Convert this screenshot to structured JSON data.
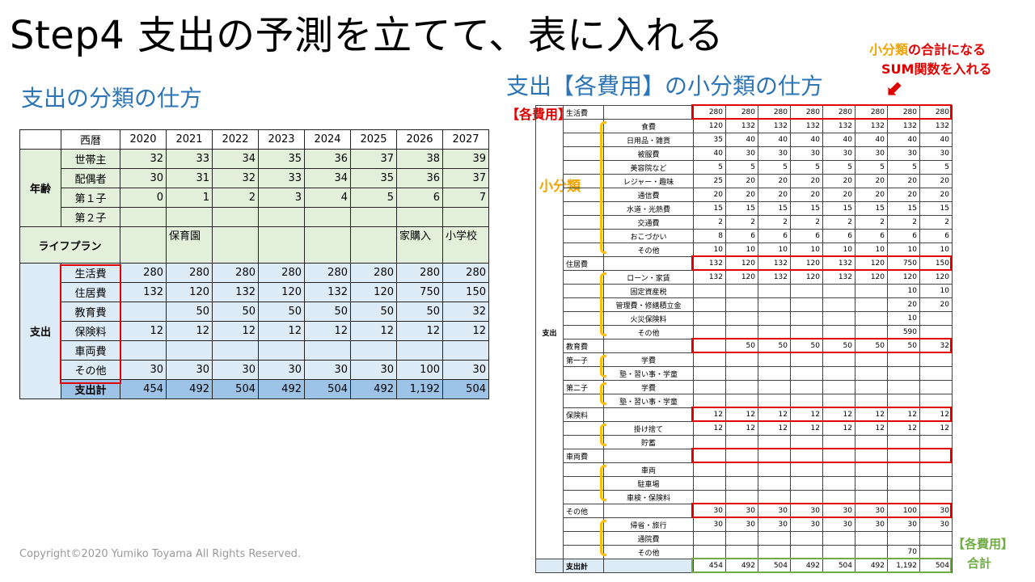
{
  "title": "Step4 支出の予測を立てて、表に入れる",
  "left_subtitle": "支出の分類の仕方",
  "right_subtitle": "支出【各費用】の小分類の仕方",
  "ann_kakuhiyo": "【各費用】",
  "ann_sum_line1_orange": "小分類",
  "ann_sum_line1_red": "の合計になる",
  "ann_sum_line2": "SUM関数を入れる",
  "ann_arrow": "⬋",
  "ann_shobunrui": "小分類",
  "ann_total_line1": "【各費用】",
  "ann_total_line2": "合計",
  "copyright": "Copyright©2020 Yumiko Toyama All Rights Reserved.",
  "colors": {
    "accent_blue": "#2E75B6",
    "highlight_red": "#E00000",
    "bracket_yellow": "#FFC000",
    "total_green": "#70AD47"
  },
  "left_table": {
    "header": [
      "",
      "西暦",
      "2020",
      "2021",
      "2022",
      "2023",
      "2024",
      "2025",
      "2026",
      "2027"
    ],
    "age_group": "年齢",
    "age_rows": [
      [
        "世帯主",
        "32",
        "33",
        "34",
        "35",
        "36",
        "37",
        "38",
        "39"
      ],
      [
        "配偶者",
        "30",
        "31",
        "32",
        "33",
        "34",
        "35",
        "36",
        "37"
      ],
      [
        "第１子",
        "0",
        "1",
        "2",
        "3",
        "4",
        "5",
        "6",
        "7"
      ],
      [
        "第２子",
        "",
        "",
        "",
        "",
        "",
        "",
        "",
        ""
      ]
    ],
    "lifeplan_label": "ライフプラン",
    "lifeplan_values": [
      "",
      "保育園",
      "",
      "",
      "",
      "",
      "家購入",
      "小学校"
    ],
    "expense_group": "支出",
    "expense_rows": [
      [
        "生活費",
        "280",
        "280",
        "280",
        "280",
        "280",
        "280",
        "280",
        "280"
      ],
      [
        "住居費",
        "132",
        "120",
        "132",
        "120",
        "132",
        "120",
        "750",
        "150"
      ],
      [
        "教育費",
        "",
        "50",
        "50",
        "50",
        "50",
        "50",
        "50",
        "32"
      ],
      [
        "保険料",
        "12",
        "12",
        "12",
        "12",
        "12",
        "12",
        "12",
        "12"
      ],
      [
        "車両費",
        "",
        "",
        "",
        "",
        "",
        "",
        "",
        ""
      ],
      [
        "その他",
        "30",
        "30",
        "30",
        "30",
        "30",
        "30",
        "100",
        "30"
      ]
    ],
    "total_row": [
      "支出計",
      "454",
      "492",
      "504",
      "492",
      "504",
      "492",
      "1,192",
      "504"
    ]
  },
  "right_table": {
    "group_label": "支出",
    "rows": [
      {
        "main": "生活費",
        "sub": "",
        "values": [
          "280",
          "280",
          "280",
          "280",
          "280",
          "280",
          "280",
          "280"
        ]
      },
      {
        "main": "",
        "sub": "食費",
        "values": [
          "120",
          "132",
          "132",
          "132",
          "132",
          "132",
          "132",
          "132"
        ]
      },
      {
        "main": "",
        "sub": "日用品・雑貨",
        "values": [
          "35",
          "40",
          "40",
          "40",
          "40",
          "40",
          "40",
          "40"
        ]
      },
      {
        "main": "",
        "sub": "被服費",
        "values": [
          "40",
          "30",
          "30",
          "30",
          "30",
          "30",
          "30",
          "30"
        ]
      },
      {
        "main": "",
        "sub": "美容院など",
        "values": [
          "5",
          "5",
          "5",
          "5",
          "5",
          "5",
          "5",
          "5"
        ]
      },
      {
        "main": "",
        "sub": "レジャー・趣味",
        "values": [
          "25",
          "20",
          "20",
          "20",
          "20",
          "20",
          "20",
          "20"
        ]
      },
      {
        "main": "",
        "sub": "通信費",
        "values": [
          "20",
          "20",
          "20",
          "20",
          "20",
          "20",
          "20",
          "20"
        ]
      },
      {
        "main": "",
        "sub": "水道・光熱費",
        "values": [
          "15",
          "15",
          "15",
          "15",
          "15",
          "15",
          "15",
          "15"
        ]
      },
      {
        "main": "",
        "sub": "交通費",
        "values": [
          "2",
          "2",
          "2",
          "2",
          "2",
          "2",
          "2",
          "2"
        ]
      },
      {
        "main": "",
        "sub": "おこづかい",
        "values": [
          "8",
          "6",
          "6",
          "6",
          "6",
          "6",
          "6",
          "6"
        ]
      },
      {
        "main": "",
        "sub": "その他",
        "values": [
          "10",
          "10",
          "10",
          "10",
          "10",
          "10",
          "10",
          "10"
        ]
      },
      {
        "main": "住居費",
        "sub": "",
        "values": [
          "132",
          "120",
          "132",
          "120",
          "132",
          "120",
          "750",
          "150"
        ]
      },
      {
        "main": "",
        "sub": "ローン・家賃",
        "values": [
          "132",
          "120",
          "132",
          "120",
          "132",
          "120",
          "120",
          "120"
        ]
      },
      {
        "main": "",
        "sub": "固定資産税",
        "values": [
          "",
          "",
          "",
          "",
          "",
          "",
          "10",
          "10"
        ]
      },
      {
        "main": "",
        "sub": "管理費・修繕積立金",
        "values": [
          "",
          "",
          "",
          "",
          "",
          "",
          "20",
          "20"
        ]
      },
      {
        "main": "",
        "sub": "火災保険料",
        "values": [
          "",
          "",
          "",
          "",
          "",
          "",
          "10",
          ""
        ]
      },
      {
        "main": "",
        "sub": "その他",
        "values": [
          "",
          "",
          "",
          "",
          "",
          "",
          "590",
          ""
        ]
      },
      {
        "main": "教育費",
        "sub": "",
        "values": [
          "",
          "50",
          "50",
          "50",
          "50",
          "50",
          "50",
          "32"
        ]
      },
      {
        "main": "第一子",
        "sub": "学費",
        "values": [
          "",
          "",
          "",
          "",
          "",
          "",
          "",
          ""
        ]
      },
      {
        "main": "",
        "sub": "塾・習い事・学童",
        "values": [
          "",
          "",
          "",
          "",
          "",
          "",
          "",
          ""
        ]
      },
      {
        "main": "第二子",
        "sub": "学費",
        "values": [
          "",
          "",
          "",
          "",
          "",
          "",
          "",
          ""
        ]
      },
      {
        "main": "",
        "sub": "塾・習い事・学童",
        "values": [
          "",
          "",
          "",
          "",
          "",
          "",
          "",
          ""
        ]
      },
      {
        "main": "保険料",
        "sub": "",
        "values": [
          "12",
          "12",
          "12",
          "12",
          "12",
          "12",
          "12",
          "12"
        ]
      },
      {
        "main": "",
        "sub": "掛け捨て",
        "values": [
          "12",
          "12",
          "12",
          "12",
          "12",
          "12",
          "12",
          "12"
        ]
      },
      {
        "main": "",
        "sub": "貯蓄",
        "values": [
          "",
          "",
          "",
          "",
          "",
          "",
          "",
          ""
        ]
      },
      {
        "main": "車両費",
        "sub": "",
        "values": [
          "",
          "",
          "",
          "",
          "",
          "",
          "",
          ""
        ]
      },
      {
        "main": "",
        "sub": "車両",
        "values": [
          "",
          "",
          "",
          "",
          "",
          "",
          "",
          ""
        ]
      },
      {
        "main": "",
        "sub": "駐車場",
        "values": [
          "",
          "",
          "",
          "",
          "",
          "",
          "",
          ""
        ]
      },
      {
        "main": "",
        "sub": "車検・保険料",
        "values": [
          "",
          "",
          "",
          "",
          "",
          "",
          "",
          ""
        ]
      },
      {
        "main": "その他",
        "sub": "",
        "values": [
          "30",
          "30",
          "30",
          "30",
          "30",
          "30",
          "100",
          "30"
        ]
      },
      {
        "main": "",
        "sub": "帰省・旅行",
        "values": [
          "30",
          "30",
          "30",
          "30",
          "30",
          "30",
          "30",
          "30"
        ]
      },
      {
        "main": "",
        "sub": "通院費",
        "values": [
          "",
          "",
          "",
          "",
          "",
          "",
          "",
          ""
        ]
      },
      {
        "main": "",
        "sub": "その他",
        "values": [
          "",
          "",
          "",
          "",
          "",
          "",
          "70",
          ""
        ]
      },
      {
        "main": "支出計",
        "sub": "",
        "values": [
          "454",
          "492",
          "504",
          "492",
          "504",
          "492",
          "1,192",
          "504"
        ]
      }
    ]
  }
}
